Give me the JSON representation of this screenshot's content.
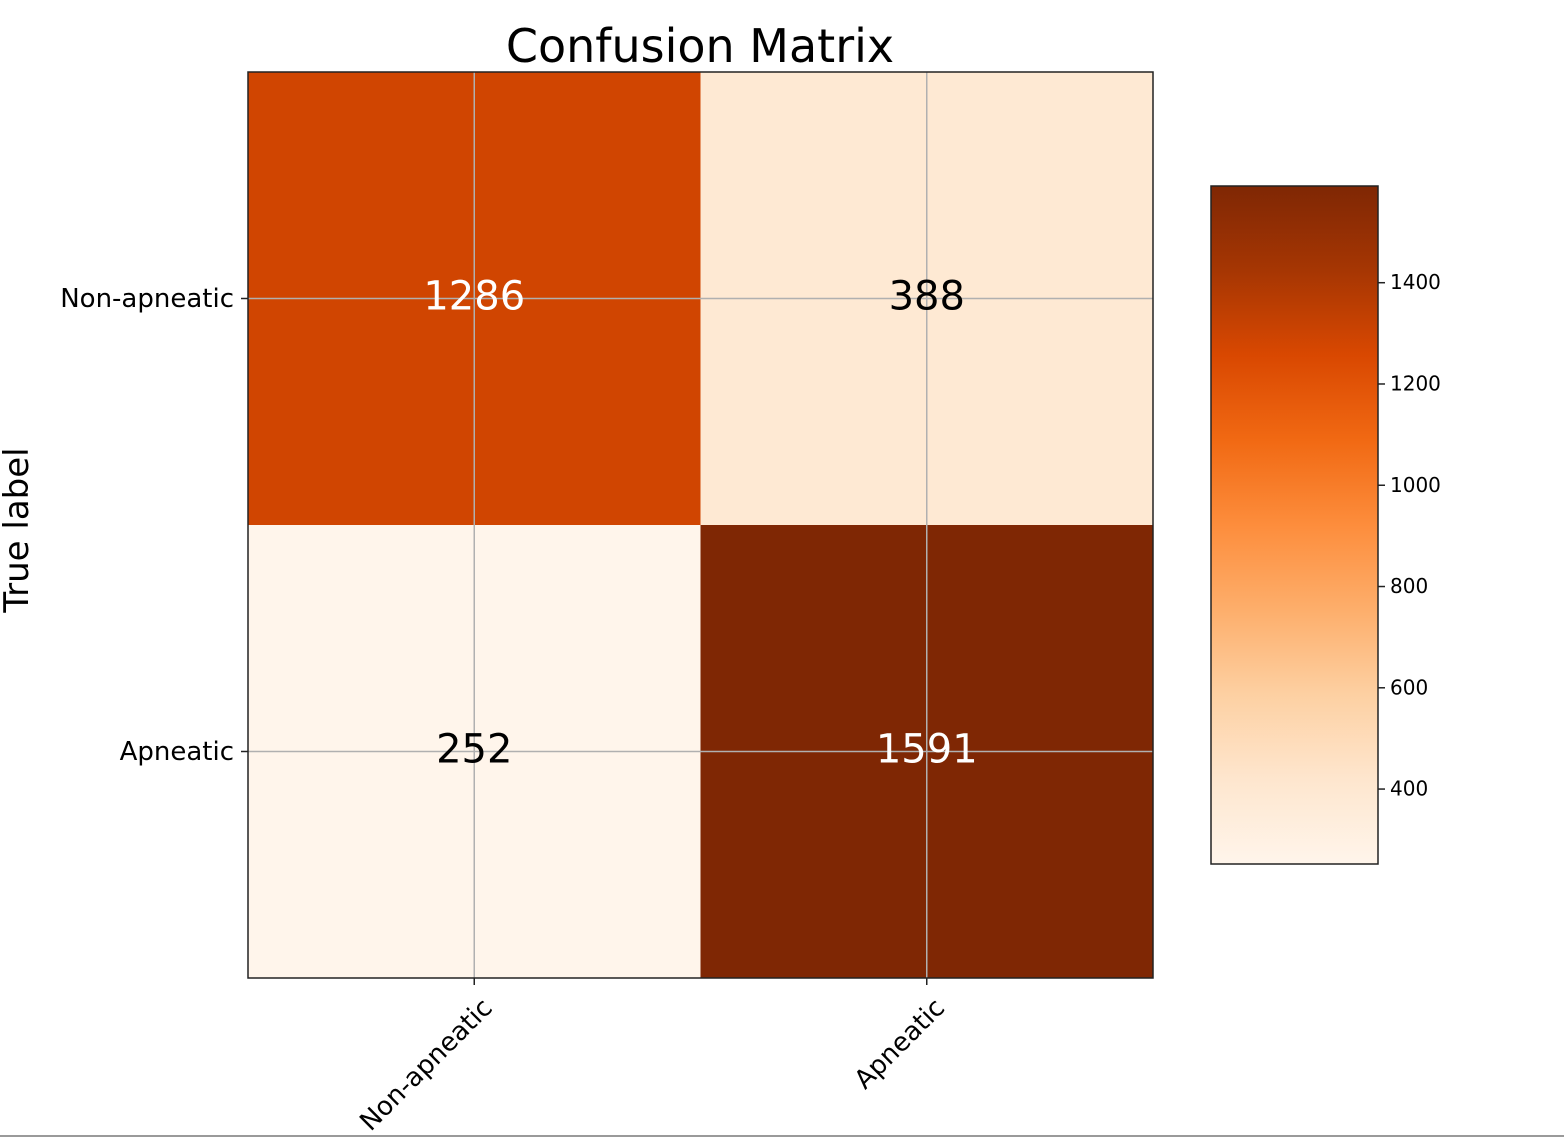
{
  "chart_data": {
    "type": "heatmap",
    "title": "Confusion Matrix",
    "ylabel": "True label",
    "xlabel": "",
    "row_labels": [
      "Non-apneatic",
      "Apneatic"
    ],
    "col_labels": [
      "Non-apneatic",
      "Apneatic"
    ],
    "values": [
      [
        1286,
        388
      ],
      [
        252,
        1591
      ]
    ],
    "colormap": "Oranges",
    "value_range": [
      252,
      1591
    ],
    "colorbar": {
      "ticks": [
        400,
        600,
        800,
        1000,
        1200,
        1400
      ]
    },
    "grid": true,
    "text_colors": {
      "dark": "#000000",
      "light": "#ffffff"
    }
  }
}
